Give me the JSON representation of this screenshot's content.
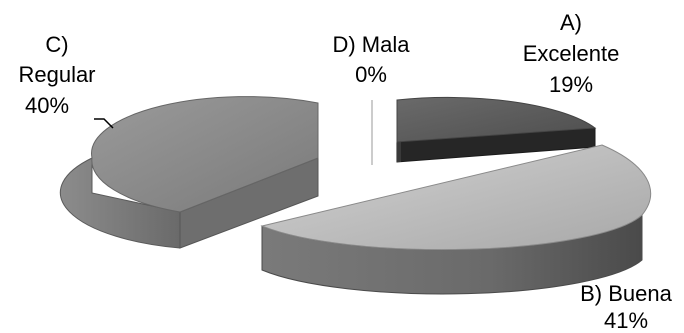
{
  "chart_data": {
    "type": "pie",
    "style": "3d-exploded",
    "title": "",
    "legend": "none",
    "slices": [
      {
        "label_lines": [
          "A)",
          "Excelente"
        ],
        "value_label": "19%",
        "value": 19,
        "color": "#5b5b5b"
      },
      {
        "label_lines": [
          "B) Buena"
        ],
        "value_label": "41%",
        "value": 41,
        "color": "#bdbdbd"
      },
      {
        "label_lines": [
          "C)",
          "Regular"
        ],
        "value_label": "40%",
        "value": 40,
        "color": "#8a8a8a"
      },
      {
        "label_lines": [
          "D) Mala"
        ],
        "value_label": "0%",
        "value": 0,
        "color": "#d9d9d9"
      }
    ]
  }
}
